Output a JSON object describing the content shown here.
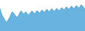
{
  "chart_data": {
    "type": "area",
    "values": [
      72,
      58,
      48,
      42,
      35,
      28,
      32,
      38,
      45,
      55,
      62,
      58,
      52,
      48,
      44,
      50,
      58,
      65,
      60,
      55,
      58,
      62,
      56,
      52,
      55,
      60,
      65,
      60,
      56,
      60,
      66,
      62,
      58,
      62,
      68,
      64,
      60,
      65,
      70,
      66,
      62,
      67,
      72,
      68,
      64,
      68,
      73,
      69,
      65,
      70,
      75,
      72,
      68,
      73,
      78,
      74,
      70,
      75,
      80,
      76,
      72,
      77,
      82,
      78,
      74,
      79,
      85,
      80,
      76,
      72
    ],
    "color": "#4da6d9",
    "ylim": [
      0,
      100
    ],
    "grid": false,
    "tick_labels": false
  }
}
